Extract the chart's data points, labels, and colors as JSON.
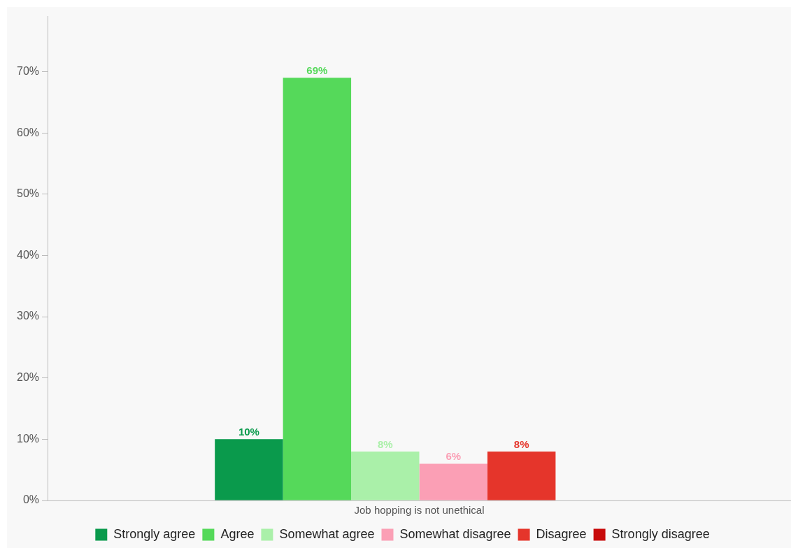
{
  "chart_data": {
    "type": "bar",
    "categories": [
      "Job hopping is not unethical"
    ],
    "series": [
      {
        "name": "Strongly agree",
        "color": "#0a9a4c",
        "values": [
          10
        ],
        "value_labels": [
          "10%"
        ]
      },
      {
        "name": "Agree",
        "color": "#55d95a",
        "values": [
          69
        ],
        "value_labels": [
          "69%"
        ]
      },
      {
        "name": "Somewhat agree",
        "color": "#aaf0a9",
        "values": [
          8
        ],
        "value_labels": [
          "8%"
        ]
      },
      {
        "name": "Somewhat disagree",
        "color": "#fb9fb5",
        "values": [
          6
        ],
        "value_labels": [
          "6%"
        ]
      },
      {
        "name": "Disagree",
        "color": "#e5352b",
        "values": [
          8
        ],
        "value_labels": [
          "8%"
        ]
      },
      {
        "name": "Strongly disagree",
        "color": "#c80b0b",
        "values": [
          null
        ],
        "value_labels": [
          null
        ]
      }
    ],
    "ylim": [
      0,
      79
    ],
    "yticks": [
      {
        "value": 0,
        "label": "0%"
      },
      {
        "value": 10,
        "label": "10%"
      },
      {
        "value": 20,
        "label": "20%"
      },
      {
        "value": 30,
        "label": "30%"
      },
      {
        "value": 40,
        "label": "40%"
      },
      {
        "value": 50,
        "label": "50%"
      },
      {
        "value": 60,
        "label": "60%"
      },
      {
        "value": 70,
        "label": "70%"
      }
    ],
    "grid": false,
    "legend": "bottom"
  }
}
